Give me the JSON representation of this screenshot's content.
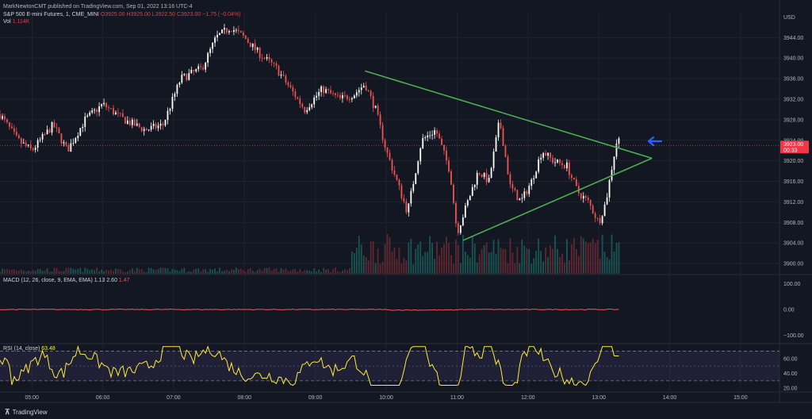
{
  "header": {
    "published": "MarkNewtonCMT published on TradingView.com, Sep 01, 2022 13:16 UTC-4",
    "symbol": "S&P 500 E-mini Futures, 1, CME_MINI",
    "ohlc": "O3925.00 H3925.00 L3922.50 C3923.00 −1.75 (−0.04%)",
    "vol_label": "Vol",
    "vol_value": "1.114K",
    "macd_label": "MACD (12, 26, close, 9, EMA, EMA)",
    "macd_v1": "1.13",
    "macd_v2": "2.60",
    "macd_v3": "1.47",
    "rsi_label": "RSI (14, close)",
    "rsi_value": "63.48"
  },
  "price_tag": {
    "price": "3923.00",
    "countdown": "00:33"
  },
  "footer": {
    "brand": "TradingView"
  },
  "colors": {
    "background": "#131722",
    "up": "#ffffff",
    "down": "#ef5350",
    "trendline": "#4caf50",
    "arrow": "#2962ff",
    "rsi": "#ffeb3b",
    "macd": "#f7525f"
  },
  "chart_data": [
    {
      "type": "candlestick",
      "currency": "USD",
      "x_ticks": [
        "05:00",
        "06:00",
        "07:00",
        "08:00",
        "09:00",
        "10:00",
        "11:00",
        "12:00",
        "13:00",
        "14:00",
        "15:00"
      ],
      "y_ticks": [
        3900,
        3904,
        3908,
        3912,
        3916,
        3920,
        3924,
        3928,
        3932,
        3936,
        3940,
        3944
      ],
      "ylim": [
        3898,
        3949
      ],
      "xlim_hours": [
        4.55,
        15.55
      ],
      "last_price": 3923.0,
      "path_points": [
        [
          4.55,
          3929
        ],
        [
          4.8,
          3924
        ],
        [
          5.0,
          3922
        ],
        [
          5.3,
          3927
        ],
        [
          5.5,
          3922
        ],
        [
          5.75,
          3928
        ],
        [
          6.0,
          3931
        ],
        [
          6.3,
          3928
        ],
        [
          6.6,
          3926
        ],
        [
          6.85,
          3927
        ],
        [
          7.1,
          3936
        ],
        [
          7.4,
          3938
        ],
        [
          7.6,
          3944
        ],
        [
          7.8,
          3946
        ],
        [
          8.0,
          3944
        ],
        [
          8.2,
          3941
        ],
        [
          8.45,
          3938
        ],
        [
          8.7,
          3933
        ],
        [
          8.85,
          3930
        ],
        [
          9.1,
          3934
        ],
        [
          9.35,
          3932
        ],
        [
          9.55,
          3933
        ],
        [
          9.7,
          3935
        ],
        [
          9.85,
          3930
        ],
        [
          10.0,
          3922
        ],
        [
          10.15,
          3916
        ],
        [
          10.3,
          3910
        ],
        [
          10.5,
          3924
        ],
        [
          10.7,
          3926
        ],
        [
          10.9,
          3918
        ],
        [
          11.0,
          3906
        ],
        [
          11.15,
          3912
        ],
        [
          11.3,
          3918
        ],
        [
          11.45,
          3916
        ],
        [
          11.6,
          3928
        ],
        [
          11.75,
          3915
        ],
        [
          11.9,
          3912
        ],
        [
          12.05,
          3916
        ],
        [
          12.2,
          3922
        ],
        [
          12.35,
          3920
        ],
        [
          12.55,
          3919
        ],
        [
          12.7,
          3914
        ],
        [
          12.85,
          3912
        ],
        [
          13.0,
          3908
        ],
        [
          13.1,
          3912
        ],
        [
          13.2,
          3920
        ],
        [
          13.27,
          3925
        ],
        [
          13.3,
          3923
        ]
      ],
      "trendlines": [
        {
          "from": [
            "09:42",
            3937.5
          ],
          "to": [
            "13:45",
            3920.5
          ]
        },
        {
          "from": [
            "11:05",
            3904.5
          ],
          "to": [
            "13:45",
            3920.5
          ]
        }
      ],
      "annotations": [
        "blue arrow pointing at last candle"
      ]
    },
    {
      "type": "bar",
      "name": "Volume",
      "note": "low volume before 09:30, high volume 09:30–13:20"
    },
    {
      "type": "line",
      "name": "MACD",
      "y_ticks": [
        "100.00",
        "0.00",
        "−100.00"
      ],
      "ylim": [
        -130,
        130
      ],
      "values_summary": "flat near 0"
    },
    {
      "type": "line",
      "name": "RSI",
      "y_ticks": [
        "60.00",
        "40.00",
        "20.00"
      ],
      "bands": [
        30,
        70
      ],
      "ylim": [
        17,
        79
      ],
      "last": 63.48
    }
  ]
}
